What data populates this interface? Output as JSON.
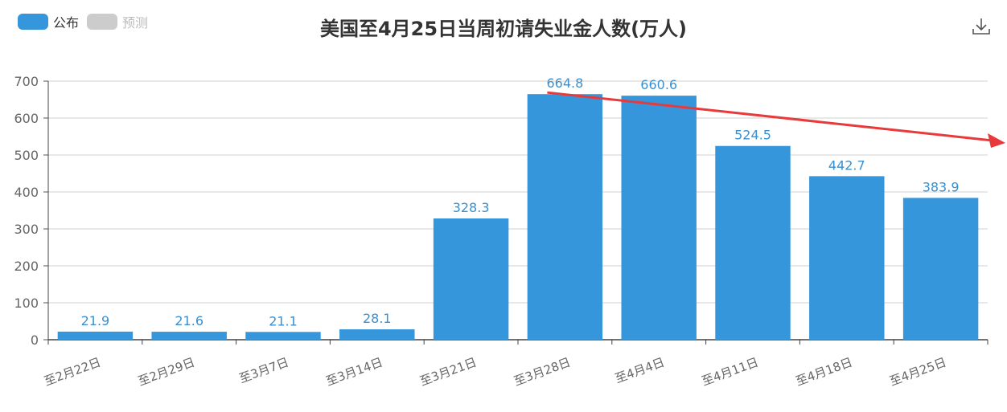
{
  "legend": [
    {
      "label": "公布",
      "color": "#3596dc"
    },
    {
      "label": "预测",
      "color": "#cccccc"
    }
  ],
  "toolbar": {
    "download_icon": "download-icon"
  },
  "chart_data": {
    "type": "bar",
    "title": "美国至4月25日当周初请失业金人数(万人)",
    "categories": [
      "至2月22日",
      "至2月29日",
      "至3月7日",
      "至3月14日",
      "至3月21日",
      "至3月28日",
      "至4月4日",
      "至4月11日",
      "至4月18日",
      "至4月25日"
    ],
    "series": [
      {
        "name": "公布",
        "values": [
          21.9,
          21.6,
          21.1,
          28.1,
          328.3,
          664.8,
          660.6,
          524.5,
          442.7,
          383.9
        ],
        "color": "#3596dc"
      }
    ],
    "ylim": [
      0,
      700
    ],
    "yticks": [
      0,
      100,
      200,
      300,
      400,
      500,
      600,
      700
    ],
    "grid": true,
    "legend_position": "top-left",
    "annotation": {
      "type": "arrow",
      "color": "#e83a3a",
      "from_category": "至3月28日",
      "trend": "down"
    }
  }
}
